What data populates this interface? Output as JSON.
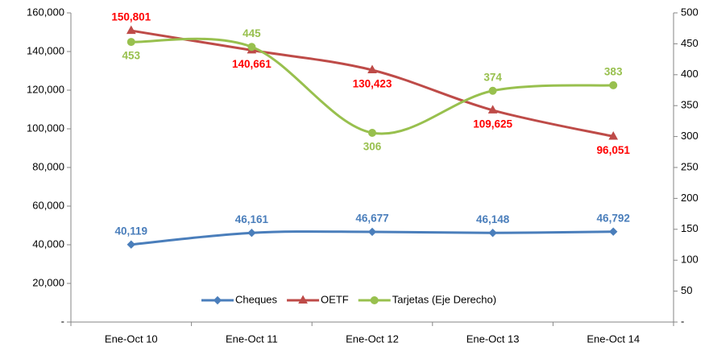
{
  "chart_data": {
    "type": "line",
    "categories": [
      "Ene-Oct 10",
      "Ene-Oct 11",
      "Ene-Oct 12",
      "Ene-Oct 13",
      "Ene-Oct 14"
    ],
    "series": [
      {
        "name": "Cheques",
        "color": "#4a7ebb",
        "marker": "diamond",
        "values": [
          40119,
          46161,
          46677,
          46148,
          46792
        ],
        "value_labels": [
          "40,119",
          "46,161",
          "46,677",
          "46,148",
          "46,792"
        ]
      },
      {
        "name": "OETF",
        "color": "#be4b48",
        "marker": "triangle",
        "label_color": "#ff0000",
        "values": [
          150801,
          140661,
          130423,
          109625,
          96051
        ],
        "value_labels": [
          "150,801",
          "140,661",
          "130,423",
          "109,625",
          "96,051"
        ]
      },
      {
        "name": "Tarjetas (Eje Derecho)",
        "color": "#98c04e",
        "marker": "circle",
        "axis": "y2",
        "values": [
          453,
          445,
          306,
          374,
          383
        ]
      }
    ],
    "ylim": [
      0,
      160000
    ],
    "yticks": [
      {
        "value": 0,
        "label": "-"
      },
      {
        "value": 20000,
        "label": "20,000"
      },
      {
        "value": 40000,
        "label": "40,000"
      },
      {
        "value": 60000,
        "label": "60,000"
      },
      {
        "value": 80000,
        "label": "80,000"
      },
      {
        "value": 100000,
        "label": "100,000"
      },
      {
        "value": 120000,
        "label": "120,000"
      },
      {
        "value": 140000,
        "label": "140,000"
      },
      {
        "value": 160000,
        "label": "160,000"
      }
    ],
    "y2lim": [
      0,
      500
    ],
    "y2ticks": [
      {
        "value": 0,
        "label": "-"
      },
      50,
      100,
      150,
      200,
      250,
      300,
      350,
      400,
      450,
      500
    ],
    "legend": "bottom",
    "grid": false
  }
}
